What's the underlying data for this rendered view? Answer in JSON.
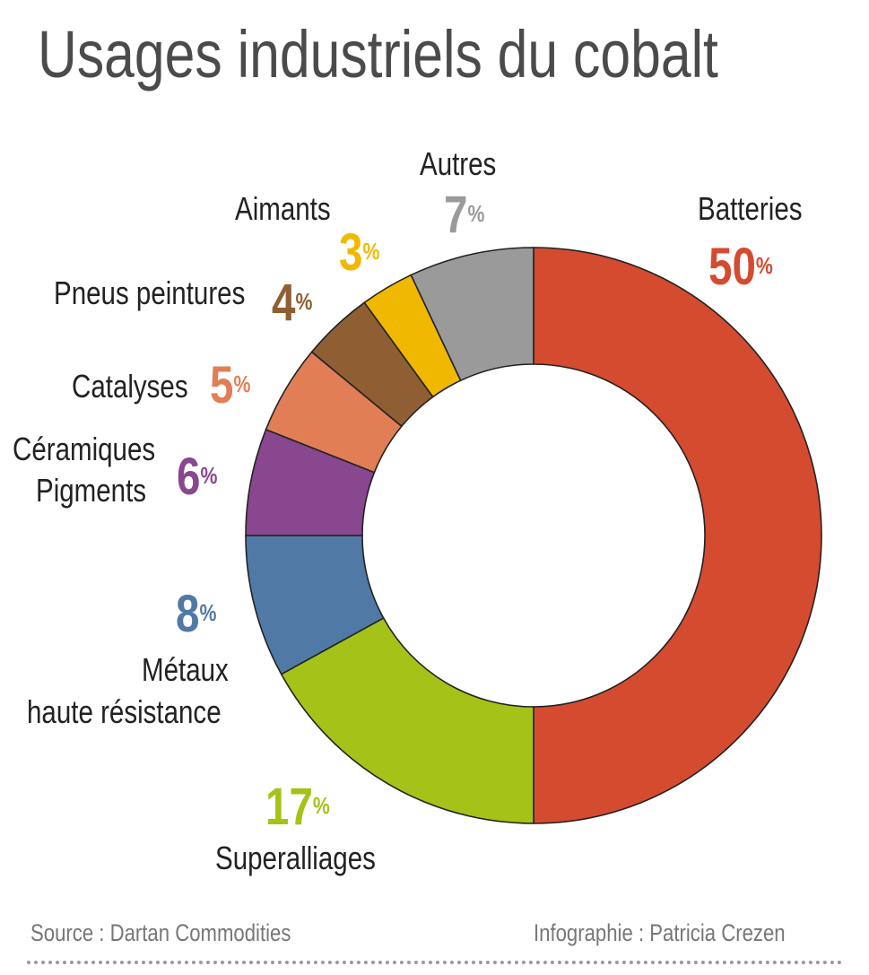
{
  "chart_data": {
    "type": "pie",
    "variant": "donut",
    "title": "Usages industriels du cobalt",
    "unit": "%",
    "start": "top",
    "direction": "clockwise",
    "slices": [
      {
        "label": "Batteries",
        "value": 50,
        "color": "#d54b30"
      },
      {
        "label": "Superalliages",
        "value": 17,
        "color": "#a5c218"
      },
      {
        "label": "Métaux haute résistance",
        "value": 8,
        "color": "#5079a6"
      },
      {
        "label": "Céramiques Pigments",
        "value": 6,
        "color": "#88478e"
      },
      {
        "label": "Catalyses",
        "value": 5,
        "color": "#e17e55"
      },
      {
        "label": "Pneus peintures",
        "value": 4,
        "color": "#8f5f33"
      },
      {
        "label": "Aimants",
        "value": 3,
        "color": "#f1b800"
      },
      {
        "label": "Autres",
        "value": 7,
        "color": "#9a9a9a"
      }
    ]
  },
  "labels": {
    "batteries": "Batteries",
    "superalliages": "Superalliages",
    "metaux_1": "Métaux",
    "metaux_2": "haute résistance",
    "ceramiques_1": "Céramiques",
    "ceramiques_2": "Pigments",
    "catalyses": "Catalyses",
    "pneus": "Pneus peintures",
    "aimants": "Aimants",
    "autres": "Autres",
    "percent_sign": "%"
  },
  "footer": {
    "source": "Source : Dartan Commodities",
    "credit": "Infographie : Patricia Crezen"
  }
}
